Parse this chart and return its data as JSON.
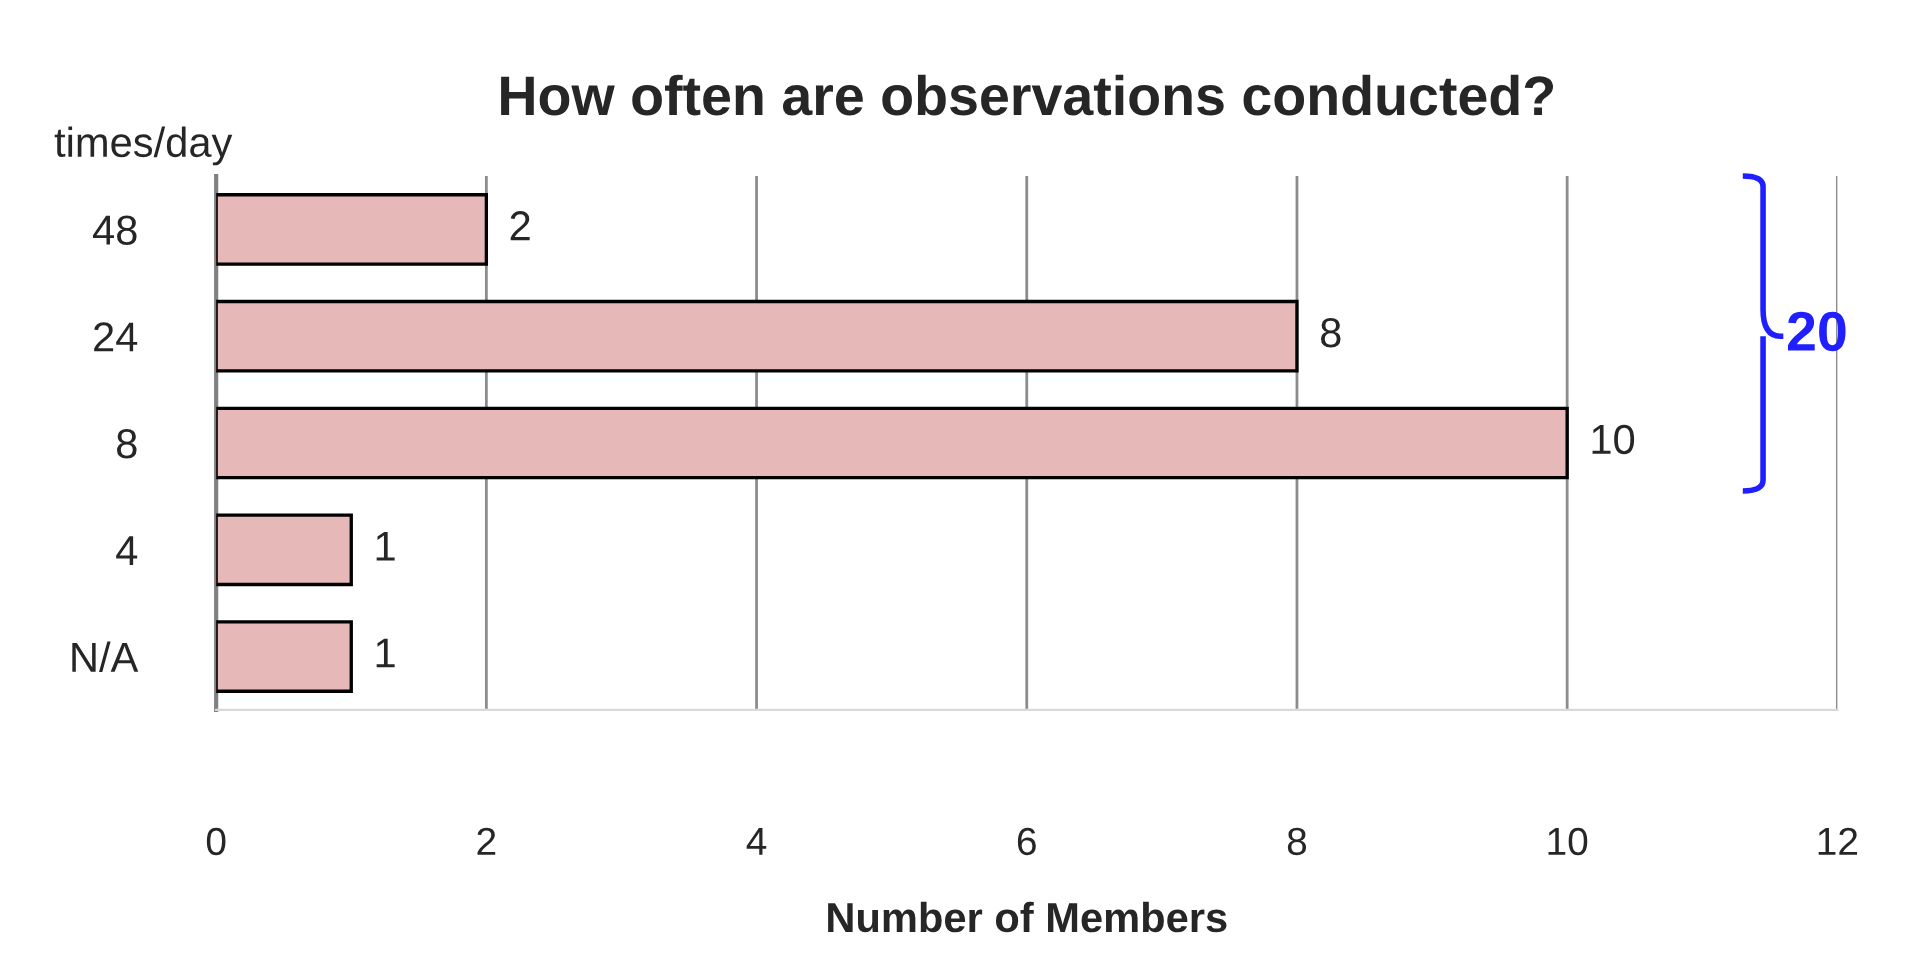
{
  "chart_data": {
    "type": "bar",
    "orientation": "horizontal",
    "title": "How often are observations conducted?",
    "ylabel": "times/day",
    "xlabel": "Number of Members",
    "categories": [
      "48",
      "24",
      "8",
      "4",
      "N/A"
    ],
    "values": [
      2,
      8,
      10,
      1,
      1
    ],
    "color": "#e6b8b7",
    "xlim": [
      0,
      12
    ],
    "xticks": [
      0,
      2,
      4,
      6,
      8,
      10,
      12
    ],
    "grid": "x",
    "data_labels": true,
    "annotations": [
      "20"
    ]
  }
}
